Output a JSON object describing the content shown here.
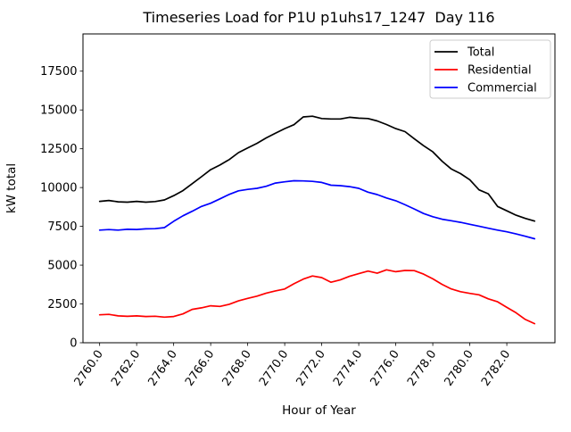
{
  "chart_data": {
    "type": "line",
    "title": "Timeseries Load for P1U p1uhs17_1247  Day 116",
    "xlabel": "Hour of Year",
    "ylabel": "kW total",
    "xlim": [
      2759.1,
      2784.6
    ],
    "ylim": [
      0,
      19900
    ],
    "grid": false,
    "xticks": {
      "values": [
        2760,
        2762,
        2764,
        2766,
        2768,
        2770,
        2772,
        2774,
        2776,
        2778,
        2780,
        2782
      ],
      "labels": [
        "2760.0",
        "2762.0",
        "2764.0",
        "2766.0",
        "2768.0",
        "2770.0",
        "2772.0",
        "2774.0",
        "2776.0",
        "2778.0",
        "2780.0",
        "2782.0"
      ],
      "rotation_deg": 55
    },
    "yticks": {
      "values": [
        0,
        2500,
        5000,
        7500,
        10000,
        12500,
        15000,
        17500
      ],
      "labels": [
        "0",
        "2500",
        "5000",
        "7500",
        "10000",
        "12500",
        "15000",
        "17500"
      ]
    },
    "legend": {
      "position": "upper right",
      "entries": [
        "Total",
        "Residential",
        "Commercial"
      ]
    },
    "x": [
      2760.0,
      2760.5,
      2761.0,
      2761.5,
      2762.0,
      2762.5,
      2763.0,
      2763.5,
      2764.0,
      2764.5,
      2765.0,
      2765.5,
      2766.0,
      2766.5,
      2767.0,
      2767.5,
      2768.0,
      2768.5,
      2769.0,
      2769.5,
      2770.0,
      2770.5,
      2771.0,
      2771.5,
      2772.0,
      2772.5,
      2773.0,
      2773.5,
      2774.0,
      2774.5,
      2775.0,
      2775.5,
      2776.0,
      2776.5,
      2777.0,
      2777.5,
      2778.0,
      2778.5,
      2779.0,
      2779.5,
      2780.0,
      2780.5,
      2781.0,
      2781.5,
      2782.0,
      2782.5,
      2783.0,
      2783.5
    ],
    "series": [
      {
        "name": "Total",
        "color": "#000000",
        "values": [
          9110,
          9170,
          9080,
          9060,
          9110,
          9060,
          9100,
          9200,
          9480,
          9800,
          10250,
          10700,
          11150,
          11450,
          11800,
          12250,
          12550,
          12850,
          13200,
          13500,
          13800,
          14050,
          14550,
          14600,
          14450,
          14420,
          14420,
          14530,
          14470,
          14450,
          14290,
          14060,
          13800,
          13600,
          13150,
          12700,
          12300,
          11700,
          11200,
          10900,
          10500,
          9850,
          9600,
          8780,
          8500,
          8220,
          8010,
          7840
        ]
      },
      {
        "name": "Residential",
        "color": "#ff0000",
        "values": [
          1800,
          1830,
          1730,
          1700,
          1730,
          1690,
          1710,
          1650,
          1690,
          1860,
          2150,
          2250,
          2380,
          2340,
          2480,
          2700,
          2860,
          3000,
          3200,
          3340,
          3460,
          3800,
          4100,
          4300,
          4200,
          3900,
          4050,
          4280,
          4450,
          4620,
          4480,
          4700,
          4580,
          4660,
          4650,
          4420,
          4120,
          3760,
          3470,
          3290,
          3180,
          3090,
          2830,
          2640,
          2280,
          1930,
          1500,
          1230
        ]
      },
      {
        "name": "Commercial",
        "color": "#0000ff",
        "values": [
          7260,
          7290,
          7260,
          7310,
          7300,
          7340,
          7350,
          7420,
          7830,
          8180,
          8470,
          8780,
          8990,
          9270,
          9560,
          9790,
          9880,
          9950,
          10080,
          10290,
          10370,
          10440,
          10430,
          10400,
          10330,
          10150,
          10120,
          10060,
          9950,
          9700,
          9550,
          9330,
          9150,
          8890,
          8620,
          8330,
          8120,
          7960,
          7860,
          7760,
          7630,
          7510,
          7380,
          7260,
          7150,
          7010,
          6860,
          6700
        ]
      }
    ]
  }
}
